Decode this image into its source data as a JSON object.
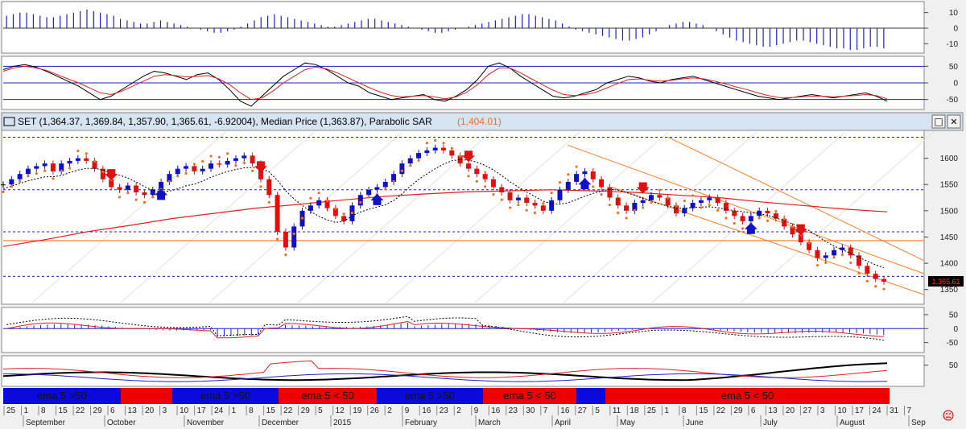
{
  "title_bar": {
    "symbol_text": "SET (1,364.37, 1,369.84, 1,357.90, 1,365.61, -6.92004), Median Price (1,363.87), Parabolic SAR",
    "sar_value": "(1,404.01)",
    "maximize_glyph": "□",
    "close_glyph": "✕"
  },
  "last_price_label": "1,365.61",
  "colors": {
    "up": "#1010c8",
    "down": "#e01010",
    "neutral": "#000000",
    "sar": "#f07020",
    "ema": "#e02020",
    "band_blue": "#1f1fd8",
    "band_red": "#ff0000",
    "channel": "#ff7f27"
  },
  "chart_data": [
    {
      "type": "bar",
      "panel": "histogram-top",
      "y_ticks": [
        "10",
        "0",
        "-10"
      ],
      "ylim": [
        -15,
        15
      ],
      "values": [
        8,
        9,
        10,
        10,
        9,
        8,
        7,
        7,
        8,
        9,
        10,
        11,
        12,
        11,
        10,
        9,
        8,
        6,
        5,
        4,
        3,
        3,
        4,
        5,
        4,
        3,
        2,
        1,
        0,
        -1,
        -2,
        -3,
        -3,
        -2,
        -1,
        1,
        3,
        5,
        7,
        8,
        9,
        8,
        7,
        6,
        5,
        4,
        3,
        2,
        1,
        1,
        2,
        3,
        4,
        5,
        6,
        6,
        5,
        4,
        3,
        2,
        1,
        0,
        -1,
        -2,
        -3,
        -3,
        -2,
        -1,
        0,
        1,
        2,
        3,
        4,
        5,
        6,
        7,
        8,
        9,
        9,
        8,
        7,
        6,
        5,
        3,
        1,
        -1,
        -2,
        -3,
        -4,
        -5,
        -6,
        -7,
        -8,
        -8,
        -7,
        -6,
        -4,
        -2,
        0,
        2,
        3,
        4,
        4,
        3,
        2,
        0,
        -2,
        -4,
        -6,
        -8,
        -9,
        -10,
        -11,
        -12,
        -12,
        -11,
        -10,
        -9,
        -8,
        -8,
        -9,
        -10,
        -11,
        -12,
        -13,
        -13,
        -14,
        -14,
        -13,
        -12,
        -12,
        -13
      ]
    },
    {
      "type": "line",
      "panel": "oscillator",
      "y_ticks": [
        "50",
        "0",
        "-50"
      ],
      "ylim": [
        -75,
        75
      ],
      "series": [
        {
          "values": [
            40,
            50,
            55,
            48,
            35,
            20,
            5,
            -10,
            -30,
            -50,
            -40,
            -20,
            0,
            20,
            35,
            30,
            20,
            10,
            25,
            30,
            10,
            -20,
            -55,
            -70,
            -40,
            -10,
            20,
            40,
            60,
            55,
            40,
            20,
            0,
            -10,
            -30,
            -40,
            -50,
            -45,
            -40,
            -35,
            -50,
            -55,
            -40,
            -20,
            10,
            50,
            60,
            45,
            20,
            0,
            -20,
            -40,
            -45,
            -40,
            -30,
            -20,
            0,
            10,
            20,
            15,
            5,
            0,
            10,
            15,
            20,
            10,
            0,
            -10,
            -20,
            -30,
            -40,
            -45,
            -50,
            -45,
            -40,
            -35,
            -40,
            -45,
            -40,
            -35,
            -30,
            -40,
            -55
          ]
        },
        {
          "values": [
            35,
            45,
            50,
            45,
            38,
            25,
            12,
            0,
            -15,
            -30,
            -35,
            -25,
            -10,
            5,
            20,
            25,
            22,
            18,
            20,
            22,
            12,
            -5,
            -30,
            -50,
            -45,
            -25,
            0,
            20,
            40,
            48,
            42,
            30,
            15,
            0,
            -15,
            -28,
            -38,
            -42,
            -40,
            -38,
            -42,
            -48,
            -42,
            -28,
            -5,
            25,
            45,
            45,
            30,
            12,
            -5,
            -22,
            -35,
            -38,
            -35,
            -28,
            -15,
            -2,
            10,
            12,
            8,
            5,
            8,
            12,
            15,
            12,
            5,
            -3,
            -12,
            -20,
            -30,
            -38,
            -44,
            -44,
            -42,
            -40,
            -40,
            -42,
            -40,
            -38,
            -35,
            -38,
            -48
          ]
        }
      ]
    },
    {
      "type": "line",
      "panel": "price",
      "title": "SET",
      "y_ticks": [
        "1600",
        "1550",
        "1500",
        "1450",
        "1400",
        "1350"
      ],
      "ylim": [
        1325,
        1650
      ],
      "close": [
        1550,
        1560,
        1570,
        1580,
        1585,
        1590,
        1575,
        1590,
        1595,
        1600,
        1595,
        1580,
        1560,
        1545,
        1540,
        1548,
        1535,
        1530,
        1540,
        1555,
        1570,
        1580,
        1585,
        1575,
        1580,
        1590,
        1588,
        1595,
        1600,
        1605,
        1590,
        1560,
        1530,
        1460,
        1430,
        1470,
        1500,
        1510,
        1520,
        1505,
        1490,
        1480,
        1510,
        1530,
        1540,
        1545,
        1555,
        1570,
        1590,
        1600,
        1610,
        1615,
        1620,
        1615,
        1605,
        1590,
        1580,
        1570,
        1560,
        1545,
        1535,
        1520,
        1525,
        1515,
        1510,
        1500,
        1520,
        1540,
        1555,
        1570,
        1575,
        1560,
        1545,
        1525,
        1510,
        1500,
        1515,
        1520,
        1530,
        1525,
        1510,
        1495,
        1505,
        1515,
        1520,
        1525,
        1515,
        1500,
        1490,
        1480,
        1490,
        1500,
        1495,
        1485,
        1470,
        1455,
        1440,
        1425,
        1410,
        1415,
        1425,
        1430,
        1415,
        1395,
        1380,
        1370,
        1365
      ]
    },
    {
      "type": "line",
      "panel": "macd",
      "y_ticks": [
        "50",
        "0",
        "-50"
      ],
      "ylim": [
        -80,
        70
      ]
    },
    {
      "type": "line",
      "panel": "adx",
      "y_ticks": [
        "50"
      ],
      "ylim": [
        0,
        70
      ]
    }
  ],
  "ema_bar": [
    {
      "label": "ema 5 >50",
      "color": "#0a0adc"
    },
    {
      "label": "",
      "color": "#ee0000"
    },
    {
      "label": "ema 5 >50",
      "color": "#0a0adc"
    },
    {
      "label": "ema 5 < 50",
      "color": "#ee0000"
    },
    {
      "label": "ema 5 >50",
      "color": "#0a0adc"
    },
    {
      "label": "ema 5 < 50",
      "color": "#ee0000"
    },
    {
      "label": "",
      "color": "#0a0adc"
    },
    {
      "label": "ema 5 < 50",
      "color": "#ee0000"
    }
  ],
  "x_axis": {
    "days": [
      "25",
      "1",
      "8",
      "15",
      "22",
      "29",
      "6",
      "13",
      "20",
      "3",
      "10",
      "17",
      "24",
      "1",
      "8",
      "15",
      "22",
      "29",
      "5",
      "12",
      "19",
      "26",
      "2",
      "9",
      "16",
      "23",
      "2",
      "9",
      "16",
      "23",
      "30",
      "7",
      "16",
      "27",
      "5",
      "11",
      "18",
      "25",
      "1",
      "8",
      "15",
      "22",
      "29",
      "6",
      "13",
      "20",
      "27",
      "3",
      "10",
      "17",
      "24",
      "31",
      "7"
    ],
    "months": [
      "September",
      "October",
      "November",
      "December",
      "2015",
      "February",
      "March",
      "April",
      "May",
      "June",
      "July",
      "August",
      "Sep"
    ]
  }
}
